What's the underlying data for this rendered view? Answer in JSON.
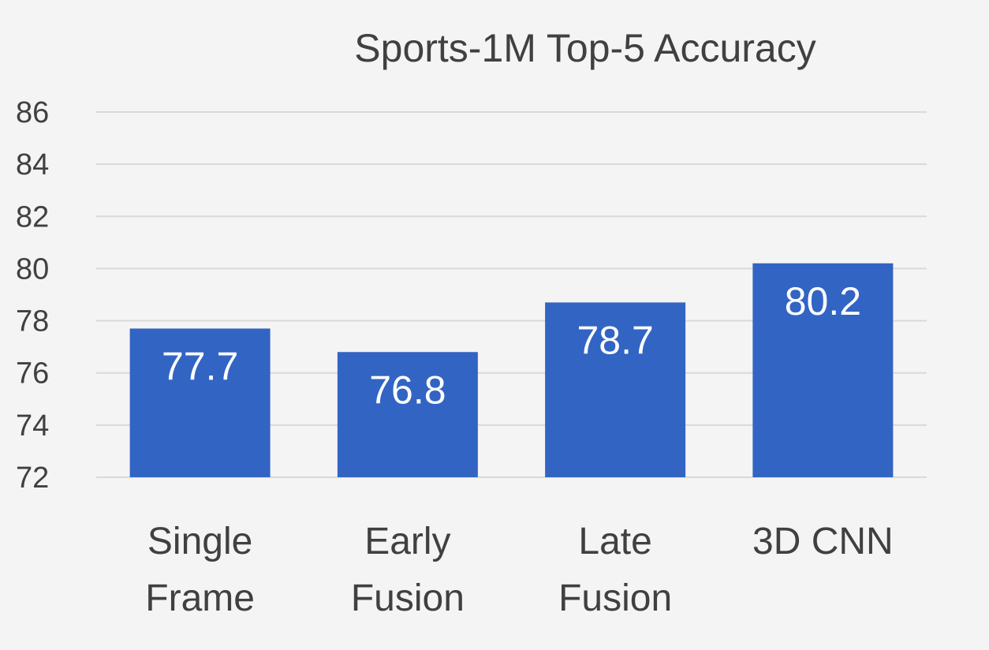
{
  "chart_data": {
    "type": "bar",
    "title": "Sports-1M Top-5 Accuracy",
    "xlabel": "",
    "ylabel": "",
    "categories": [
      [
        "Single",
        "Frame"
      ],
      [
        "Early",
        "Fusion"
      ],
      [
        "Late",
        "Fusion"
      ],
      [
        "3D CNN"
      ]
    ],
    "values": [
      77.7,
      76.8,
      78.7,
      80.2
    ],
    "value_labels": [
      "77.7",
      "76.8",
      "78.7",
      "80.2"
    ],
    "ylim": [
      72,
      86
    ],
    "yticks": [
      "72",
      "74",
      "76",
      "78",
      "80",
      "82",
      "84",
      "86"
    ],
    "grid": true,
    "legend": "none",
    "bar_color": "#3264c4"
  }
}
